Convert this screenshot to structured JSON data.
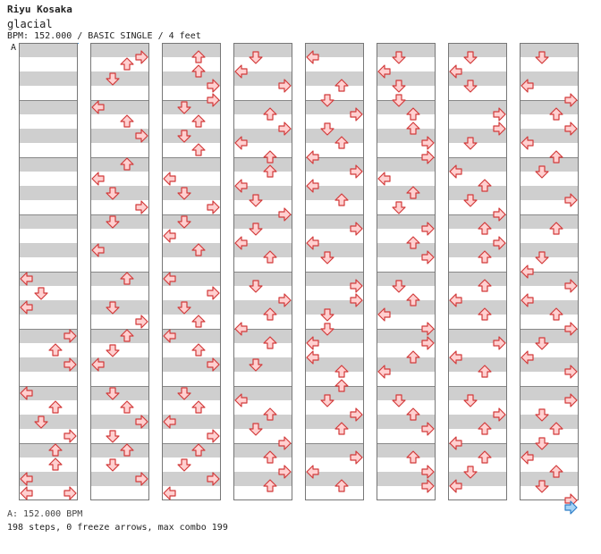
{
  "song": {
    "artist": "Riyu Kosaka",
    "title": "glacial",
    "info": "BPM: 152.000 / BASIC SINGLE / 4 feet"
  },
  "chart": {
    "marker_label": "A",
    "bpm_line": "A: 152.000 BPM",
    "summary": "198 steps, 0 freeze arrows, max combo 199",
    "colors": {
      "stripe": "#cfcfcf",
      "arrow_fill": "#ffd0d0",
      "arrow_stroke": "#d23a3a",
      "end_arrow_fill": "#a7d4f5",
      "end_arrow_stroke": "#2f7ec8"
    },
    "icon_names": [
      "left-arrow-icon",
      "down-arrow-icon",
      "up-arrow-icon",
      "right-arrow-icon"
    ],
    "columns": 8,
    "measures_per_column": 8
  }
}
